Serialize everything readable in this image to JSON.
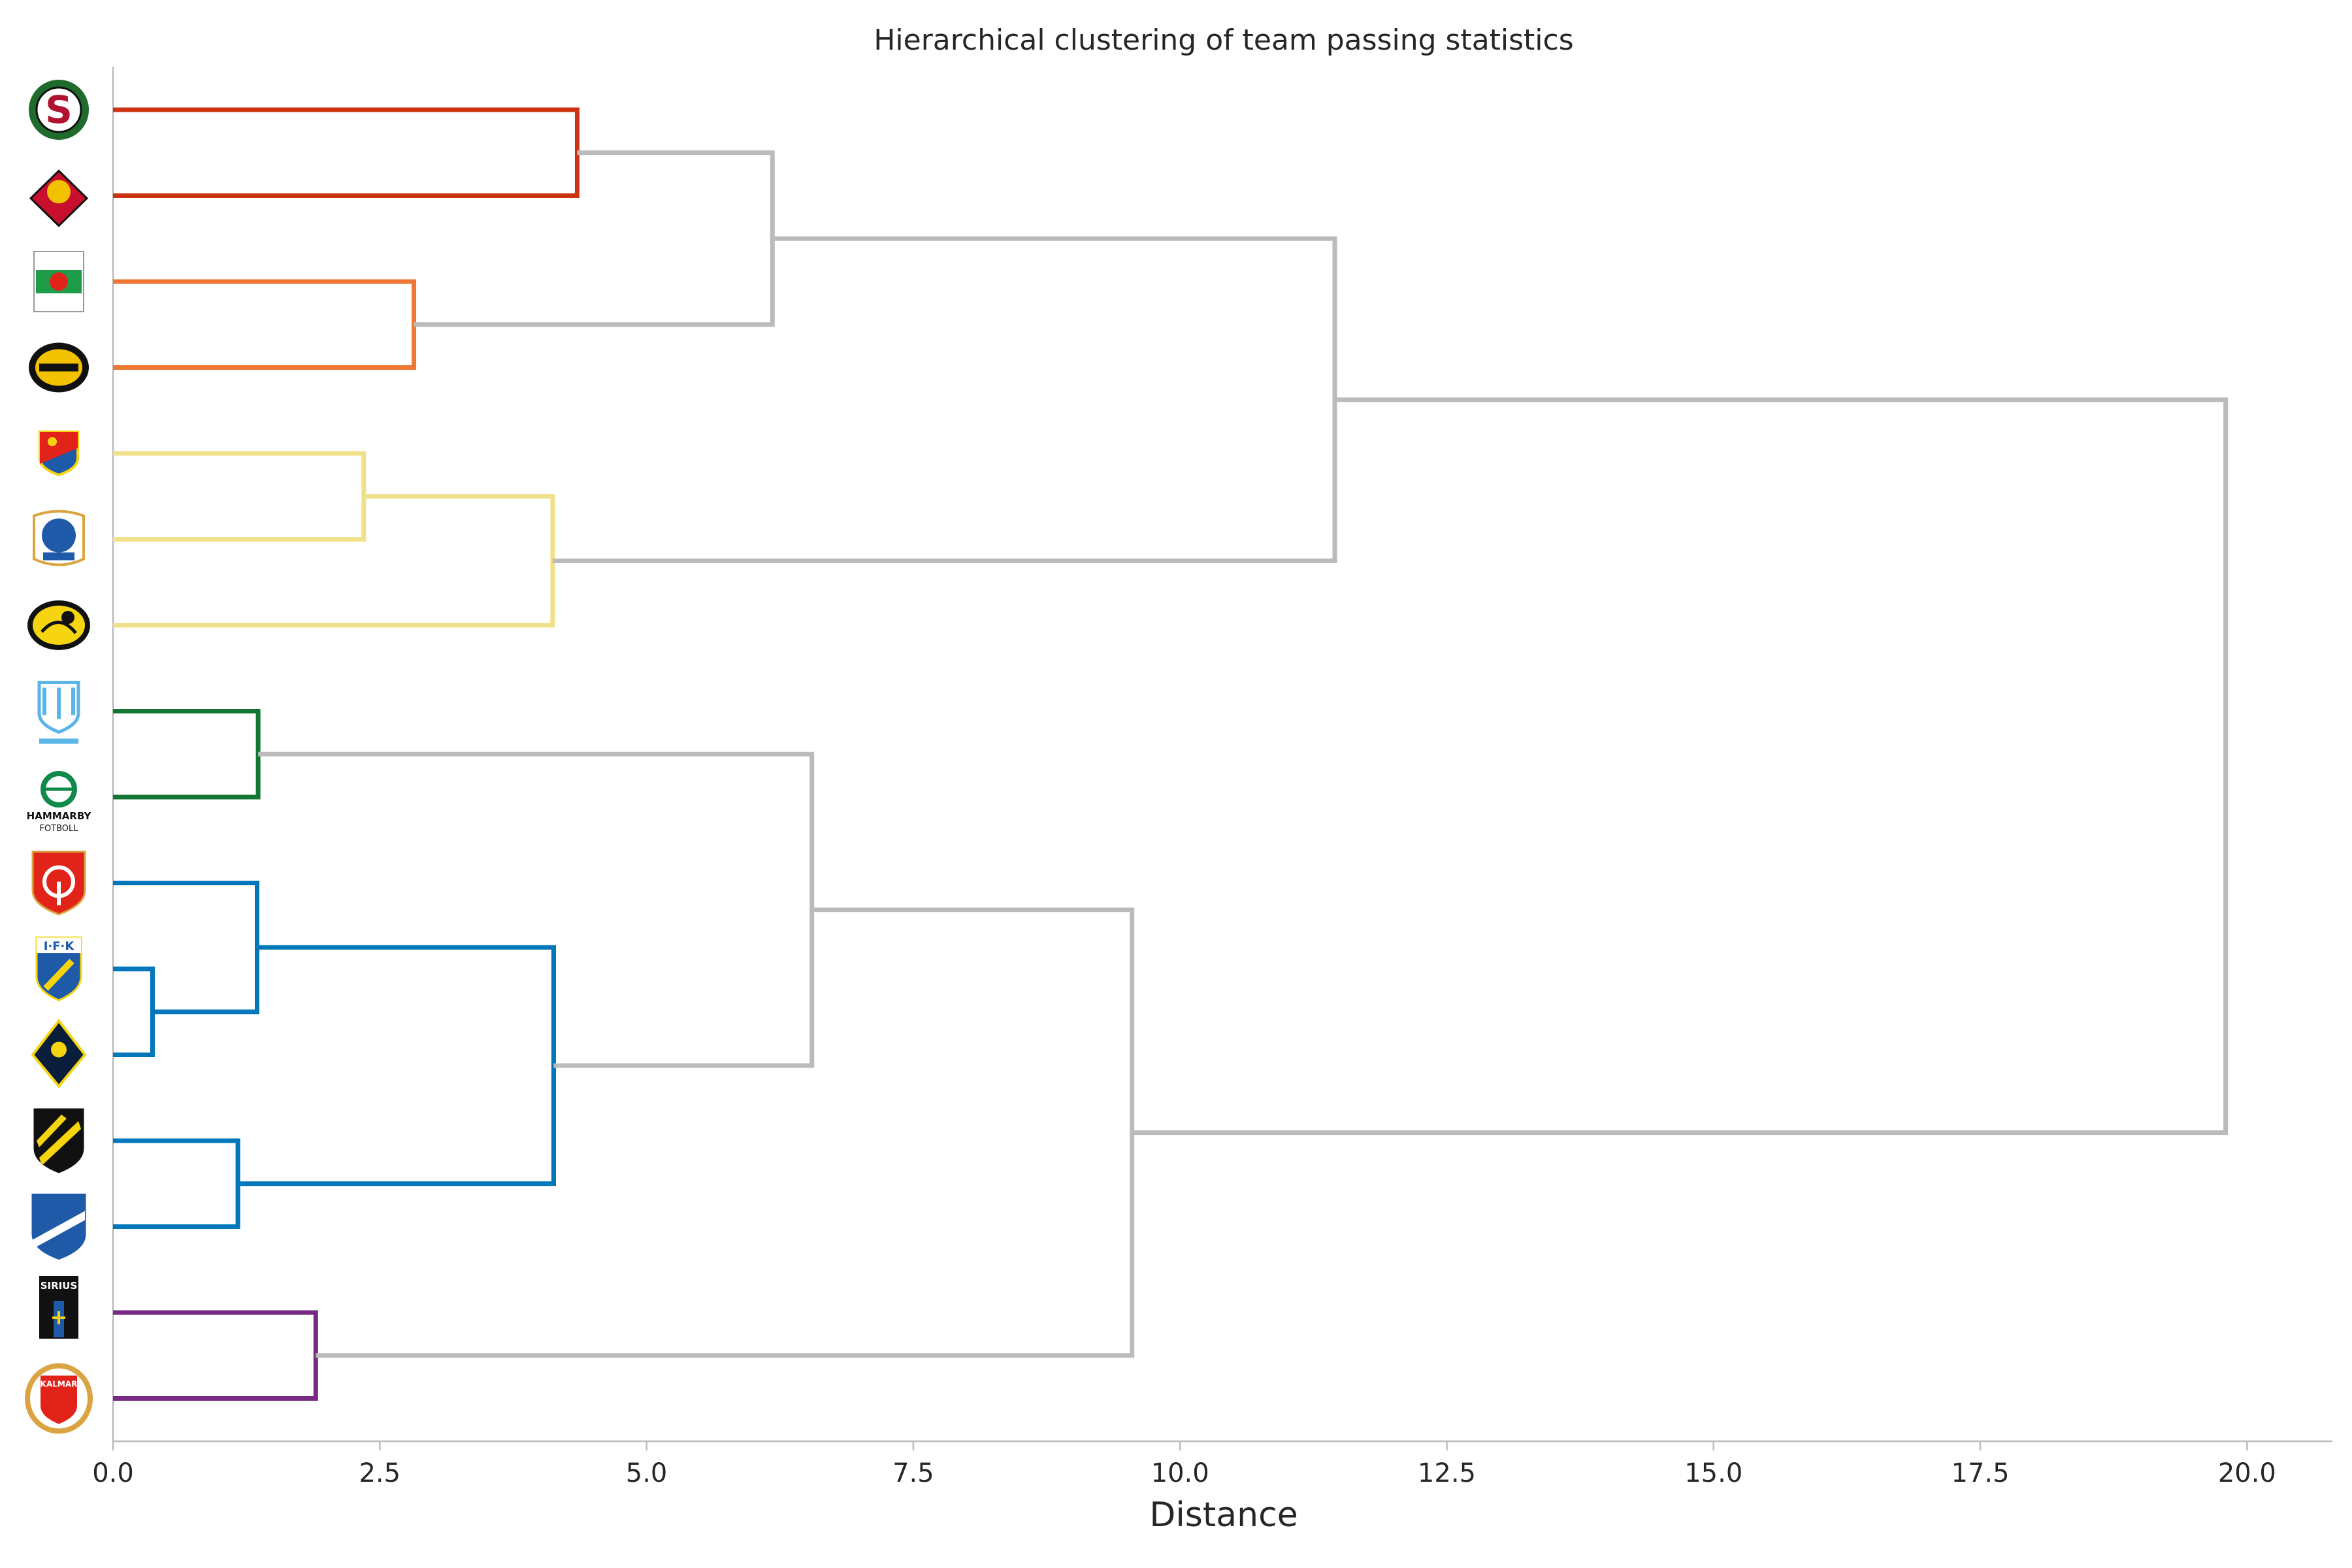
{
  "chart_data": {
    "type": "dendrogram",
    "orientation": "horizontal",
    "title": "Hierarchical clustering of team passing statistics",
    "xlabel": "Distance",
    "ylabel": "",
    "xlim": [
      0,
      20.8
    ],
    "x_ticks": [
      0.0,
      2.5,
      5.0,
      7.5,
      10.0,
      12.5,
      15.0,
      17.5,
      20.0
    ],
    "x_tick_labels": [
      "0.0",
      "2.5",
      "5.0",
      "7.5",
      "10.0",
      "12.5",
      "15.0",
      "17.5",
      "20.0"
    ],
    "grid": false,
    "leaf_labels": "club logos",
    "leaves": [
      {
        "id": "orebro",
        "logo_colors": [
          "#1f6b2c",
          "#b0132f"
        ]
      },
      {
        "id": "ostersund",
        "logo_colors": [
          "#c8102e",
          "#f2c200"
        ]
      },
      {
        "id": "varberg",
        "logo_colors": [
          "#1e9c4a",
          "#ffffff"
        ]
      },
      {
        "id": "mjallby",
        "logo_colors": [
          "#f2c200",
          "#111111"
        ]
      },
      {
        "id": "djurgarden",
        "logo_colors": [
          "#1e5aa8",
          "#e2231a",
          "#f6d40f"
        ]
      },
      {
        "id": "halmstad",
        "logo_colors": [
          "#1e5aa8",
          "#ffffff"
        ]
      },
      {
        "id": "elfsborg",
        "logo_colors": [
          "#f6d40f",
          "#111111"
        ]
      },
      {
        "id": "malmo",
        "logo_colors": [
          "#5bb5e8",
          "#ffffff"
        ]
      },
      {
        "id": "hammarby",
        "logo_colors": [
          "#0f8a4a",
          "#ffffff"
        ],
        "text": [
          "HAMMARBY",
          "FOTBOLL"
        ]
      },
      {
        "id": "degerfors",
        "logo_colors": [
          "#e2231a",
          "#ffffff"
        ]
      },
      {
        "id": "goteborg",
        "logo_colors": [
          "#1e5aa8",
          "#f6d40f"
        ],
        "text": [
          "I·F·K"
        ]
      },
      {
        "id": "aik",
        "logo_colors": [
          "#0a1e3c",
          "#f6d40f"
        ]
      },
      {
        "id": "hacken",
        "logo_colors": [
          "#f6d40f",
          "#111111"
        ]
      },
      {
        "id": "norrkoping",
        "logo_colors": [
          "#1e5aa8",
          "#ffffff"
        ]
      },
      {
        "id": "sirius",
        "logo_colors": [
          "#111111",
          "#1e5aa8"
        ],
        "text": [
          "SIRIUS"
        ]
      },
      {
        "id": "kalmar",
        "logo_colors": [
          "#e2231a",
          "#d9a441"
        ],
        "text": [
          "KALMAR"
        ]
      }
    ],
    "cluster_colors": {
      "c1": "#cc3311",
      "c2": "#ee7733",
      "c3": "#f0e08a",
      "c4": "#117733",
      "c5": "#0077bb",
      "c6": "#762a83",
      "above": "#bbbbbb"
    },
    "merges": [
      {
        "left": "L:orebro",
        "right": "L:ostersund",
        "distance": 4.35,
        "color": "c1"
      },
      {
        "left": "L:varberg",
        "right": "L:mjallby",
        "distance": 2.82,
        "color": "c2"
      },
      {
        "left": "M:0",
        "right": "M:1",
        "distance": 6.18,
        "color": "above"
      },
      {
        "left": "L:djurgarden",
        "right": "L:halmstad",
        "distance": 2.35,
        "color": "c3"
      },
      {
        "left": "M:3",
        "right": "L:elfsborg",
        "distance": 4.12,
        "color": "c3"
      },
      {
        "left": "M:2",
        "right": "M:4",
        "distance": 11.45,
        "color": "above"
      },
      {
        "left": "L:malmo",
        "right": "L:hammarby",
        "distance": 1.36,
        "color": "c4"
      },
      {
        "left": "L:goteborg",
        "right": "L:aik",
        "distance": 0.37,
        "color": "c5"
      },
      {
        "left": "L:degerfors",
        "right": "M:7",
        "distance": 1.35,
        "color": "c5"
      },
      {
        "left": "L:hacken",
        "right": "L:norrkoping",
        "distance": 1.17,
        "color": "c5"
      },
      {
        "left": "M:8",
        "right": "M:9",
        "distance": 4.13,
        "color": "c5"
      },
      {
        "left": "M:6",
        "right": "M:10",
        "distance": 6.55,
        "color": "above"
      },
      {
        "left": "L:sirius",
        "right": "L:kalmar",
        "distance": 1.9,
        "color": "c6"
      },
      {
        "left": "M:11",
        "right": "M:12",
        "distance": 9.55,
        "color": "above"
      },
      {
        "left": "M:5",
        "right": "M:13",
        "distance": 19.8,
        "color": "above"
      }
    ]
  }
}
